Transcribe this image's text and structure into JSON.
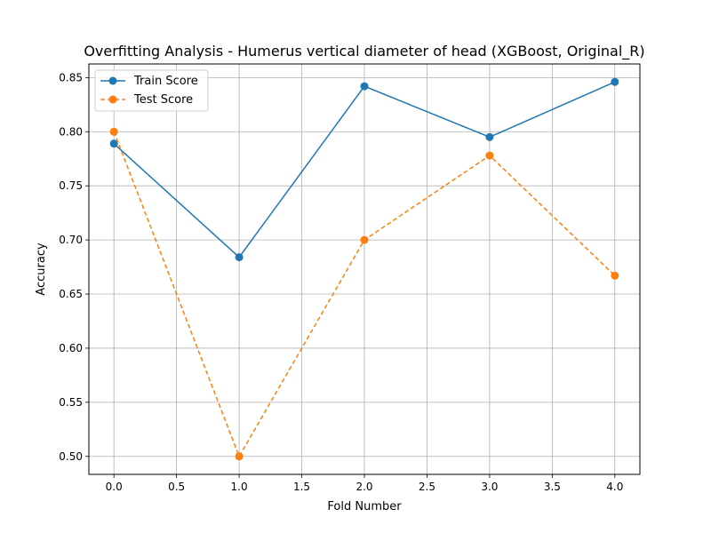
{
  "chart_data": {
    "type": "line",
    "title": "Overfitting Analysis - Humerus vertical diameter of head (XGBoost, Original_R)",
    "xlabel": "Fold Number",
    "ylabel": "Accuracy",
    "x": [
      0,
      1,
      2,
      3,
      4
    ],
    "xlim": [
      -0.2,
      4.2
    ],
    "ylim": [
      0.4834,
      0.8626
    ],
    "x_ticks": [
      "0.0",
      "0.5",
      "1.0",
      "1.5",
      "2.0",
      "2.5",
      "3.0",
      "3.5",
      "4.0"
    ],
    "y_ticks": [
      "0.50",
      "0.55",
      "0.60",
      "0.65",
      "0.70",
      "0.75",
      "0.80",
      "0.85"
    ],
    "grid": true,
    "legend_position": "top-left",
    "series": [
      {
        "name": "Train Score",
        "color": "#1f77b4",
        "line_style": "solid",
        "marker": "circle",
        "values": [
          0.789,
          0.684,
          0.842,
          0.795,
          0.846
        ]
      },
      {
        "name": "Test Score",
        "color": "#ff7f0e",
        "line_style": "dashed",
        "marker": "circle",
        "values": [
          0.8,
          0.5,
          0.7,
          0.778,
          0.667
        ]
      }
    ]
  }
}
